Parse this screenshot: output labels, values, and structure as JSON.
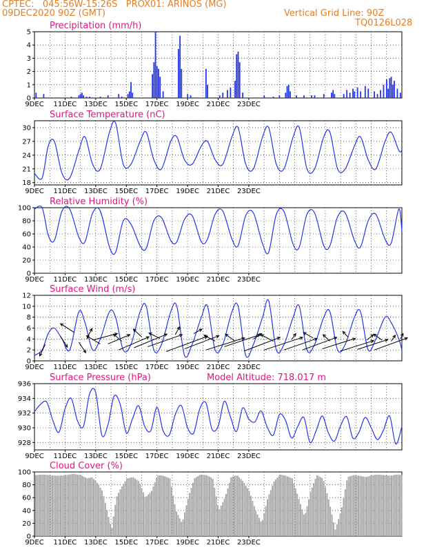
{
  "header": {
    "line1": "CPTEC:   045:56W-15:26S   PROX01: ARINOS (MG)",
    "line2_left": "09DEC2020 90Z (GMT)",
    "line2_right": "Vertical Grid Line: 90Z",
    "line3_right": "TQ0126L028"
  },
  "colors": {
    "header": "#e67e22",
    "title": "#e0157f",
    "series": "#2233ee",
    "cloud": "#aaaaaa",
    "arrow": "#000000"
  },
  "chart_data": [
    {
      "id": "precip",
      "type": "bar",
      "title": "Precipitation (mm/h)",
      "xlabels": [
        "9DEC",
        "11DEC",
        "13DEC",
        "15DEC",
        "17DEC",
        "19DEC",
        "21DEC",
        "23DEC"
      ],
      "yticks": [
        0,
        1,
        2,
        3,
        4,
        5
      ],
      "ylim": [
        0,
        5
      ],
      "events": [
        [
          0.1,
          0.4
        ],
        [
          0.6,
          0.3
        ],
        [
          2.4,
          0.1
        ],
        [
          2.9,
          0.2
        ],
        [
          3.0,
          0.3
        ],
        [
          3.1,
          0.4
        ],
        [
          3.2,
          0.2
        ],
        [
          3.4,
          0.1
        ],
        [
          3.6,
          0.1
        ],
        [
          4.3,
          0.1
        ],
        [
          4.8,
          0.2
        ],
        [
          5.5,
          0.3
        ],
        [
          5.7,
          0.1
        ],
        [
          6.1,
          0.3
        ],
        [
          6.2,
          0.5
        ],
        [
          6.3,
          1.2
        ],
        [
          6.4,
          0.4
        ],
        [
          7.7,
          1.8
        ],
        [
          7.8,
          2.7
        ],
        [
          7.9,
          5.0
        ],
        [
          8.0,
          2.4
        ],
        [
          8.1,
          2.2
        ],
        [
          8.2,
          1.6
        ],
        [
          8.4,
          0.5
        ],
        [
          9.4,
          3.7
        ],
        [
          9.5,
          4.7
        ],
        [
          9.6,
          2.2
        ],
        [
          10.0,
          0.3
        ],
        [
          10.2,
          0.2
        ],
        [
          11.2,
          2.2
        ],
        [
          11.3,
          1.0
        ],
        [
          12.1,
          0.2
        ],
        [
          12.3,
          0.4
        ],
        [
          12.6,
          0.6
        ],
        [
          12.8,
          0.8
        ],
        [
          13.1,
          1.3
        ],
        [
          13.2,
          3.3
        ],
        [
          13.3,
          3.5
        ],
        [
          13.4,
          2.7
        ],
        [
          13.6,
          0.4
        ],
        [
          15.0,
          0.2
        ],
        [
          15.6,
          0.1
        ],
        [
          16.0,
          0.2
        ],
        [
          16.4,
          0.4
        ],
        [
          16.5,
          0.9
        ],
        [
          16.6,
          1.0
        ],
        [
          16.7,
          0.5
        ],
        [
          17.1,
          0.2
        ],
        [
          17.6,
          0.2
        ],
        [
          18.1,
          0.2
        ],
        [
          18.3,
          0.2
        ],
        [
          18.9,
          0.3
        ],
        [
          19.4,
          0.4
        ],
        [
          19.5,
          0.6
        ],
        [
          19.6,
          0.3
        ],
        [
          20.2,
          0.3
        ],
        [
          20.4,
          0.6
        ],
        [
          20.6,
          0.4
        ],
        [
          20.8,
          0.7
        ],
        [
          20.9,
          0.5
        ],
        [
          21.1,
          0.8
        ],
        [
          21.3,
          0.5
        ],
        [
          21.6,
          0.9
        ],
        [
          21.8,
          0.7
        ],
        [
          22.2,
          0.5
        ],
        [
          22.4,
          0.3
        ],
        [
          22.6,
          0.6
        ],
        [
          22.8,
          1.0
        ],
        [
          23.0,
          1.4
        ],
        [
          23.1,
          0.7
        ],
        [
          23.2,
          1.5
        ],
        [
          23.3,
          1.6
        ],
        [
          23.4,
          1.0
        ],
        [
          23.5,
          1.3
        ],
        [
          23.7,
          0.7
        ],
        [
          23.9,
          0.4
        ]
      ]
    },
    {
      "id": "temp",
      "type": "line",
      "title": "Surface Temperature (nC)",
      "xlabels": [
        "9DEC",
        "11DEC",
        "13DEC",
        "15DEC",
        "17DEC",
        "19DEC",
        "21DEC",
        "23DEC"
      ],
      "yticks": [
        18,
        21,
        24,
        27,
        30
      ],
      "ylim": [
        17.5,
        31.5
      ],
      "x": [
        0,
        0.5,
        0.9,
        1.3,
        1.8,
        2.3,
        2.9,
        3.3,
        3.8,
        4.3,
        4.9,
        5.3,
        5.8,
        6.3,
        6.9,
        7.3,
        7.8,
        8.3,
        8.9,
        9.3,
        9.8,
        10.3,
        10.9,
        11.3,
        11.8,
        12.3,
        12.9,
        13.3,
        13.8,
        14.3,
        14.9,
        15.3,
        15.8,
        16.3,
        16.9,
        17.3,
        17.8,
        18.3,
        18.9,
        19.3,
        19.8,
        20.3,
        20.9,
        21.3,
        21.8,
        22.3,
        22.9,
        23.3,
        23.8,
        24.0
      ],
      "y": [
        20,
        19,
        26,
        27,
        20,
        19,
        25,
        28,
        22,
        21,
        29,
        31,
        22,
        22,
        27,
        29,
        23,
        21,
        27,
        28,
        23,
        22,
        26,
        27,
        23,
        22,
        28,
        30,
        22,
        21,
        28,
        30,
        22,
        21,
        28,
        30,
        21,
        21,
        28,
        29,
        21,
        21,
        26,
        28,
        23,
        21,
        27,
        29,
        25,
        25
      ]
    },
    {
      "id": "rh",
      "type": "line",
      "title": "Relative Humidity (%)",
      "xlabels": [
        "9DEC",
        "11DEC",
        "13DEC",
        "15DEC",
        "17DEC",
        "19DEC",
        "21DEC",
        "23DEC"
      ],
      "yticks": [
        0,
        20,
        40,
        60,
        80,
        100
      ],
      "ylim": [
        0,
        100
      ],
      "x": [
        0,
        0.5,
        0.9,
        1.3,
        1.8,
        2.3,
        2.9,
        3.3,
        3.8,
        4.3,
        4.9,
        5.3,
        5.8,
        6.3,
        6.9,
        7.3,
        7.8,
        8.3,
        8.9,
        9.3,
        9.8,
        10.3,
        10.9,
        11.3,
        11.8,
        12.3,
        12.9,
        13.3,
        13.8,
        14.3,
        14.9,
        15.3,
        15.8,
        16.3,
        16.9,
        17.3,
        17.8,
        18.3,
        18.9,
        19.3,
        19.8,
        20.3,
        20.9,
        21.3,
        21.8,
        22.3,
        22.9,
        23.3,
        23.8,
        24.0
      ],
      "y": [
        98,
        100,
        58,
        50,
        95,
        98,
        55,
        48,
        92,
        95,
        40,
        32,
        80,
        75,
        42,
        38,
        80,
        85,
        50,
        48,
        82,
        88,
        48,
        52,
        90,
        95,
        52,
        42,
        88,
        92,
        45,
        32,
        90,
        94,
        44,
        40,
        90,
        92,
        42,
        42,
        86,
        92,
        50,
        40,
        80,
        90,
        52,
        46,
        98,
        65
      ]
    },
    {
      "id": "wind",
      "type": "line",
      "title": "Surface Wind (m/s)",
      "xlabels": [
        "9DEC",
        "11DEC",
        "13DEC",
        "15DEC",
        "17DEC",
        "19DEC",
        "21DEC",
        "23DEC"
      ],
      "yticks": [
        0,
        2,
        4,
        6,
        8,
        10,
        12
      ],
      "ylim": [
        0,
        12
      ],
      "x": [
        0,
        0.5,
        0.9,
        1.3,
        1.8,
        2.3,
        2.9,
        3.3,
        3.8,
        4.3,
        4.9,
        5.3,
        5.8,
        6.3,
        6.9,
        7.3,
        7.8,
        8.3,
        8.9,
        9.3,
        9.8,
        10.3,
        10.9,
        11.3,
        11.8,
        12.3,
        12.9,
        13.3,
        13.8,
        14.3,
        14.9,
        15.3,
        15.8,
        16.3,
        16.9,
        17.3,
        17.8,
        18.3,
        18.9,
        19.3,
        19.8,
        20.3,
        20.9,
        21.3,
        21.8,
        22.3,
        22.9,
        23.3,
        23.8,
        24.0
      ],
      "y": [
        1,
        2,
        5,
        6,
        4,
        2,
        9,
        7,
        2,
        4,
        9,
        8,
        2,
        3,
        9,
        10,
        2,
        3,
        9,
        10,
        1,
        3,
        8,
        10,
        2,
        3,
        9,
        10,
        1,
        3,
        8,
        11,
        2,
        3,
        8,
        10,
        2,
        3,
        8,
        9,
        2,
        3,
        8,
        9,
        2,
        4,
        8,
        7,
        4,
        2
      ],
      "arrows": [
        [
          0.7,
          3.0,
          -0.4,
          -2.1
        ],
        [
          1.7,
          4.5,
          0.5,
          -2.0
        ],
        [
          2.6,
          5.2,
          -1.0,
          1.6
        ],
        [
          2.9,
          3.4,
          0.5,
          -1.9
        ],
        [
          3.4,
          4.0,
          0.4,
          1.9
        ],
        [
          3.8,
          3.8,
          1.8,
          1.2
        ],
        [
          4.3,
          3.1,
          -1.0,
          1.5
        ],
        [
          4.8,
          3.1,
          1.6,
          1.7
        ],
        [
          5.5,
          2.0,
          2.2,
          2.4
        ],
        [
          5.7,
          3.6,
          -0.6,
          1.3
        ],
        [
          6.5,
          2.4,
          2.4,
          2.5
        ],
        [
          7.0,
          4.4,
          -0.6,
          1.4
        ],
        [
          7.4,
          2.6,
          2.5,
          2.2
        ],
        [
          8.2,
          4.1,
          -0.8,
          1.0
        ],
        [
          8.6,
          1.7,
          3.0,
          2.8
        ],
        [
          9.2,
          4.8,
          0.3,
          1.4
        ],
        [
          9.8,
          2.2,
          2.5,
          2.4
        ],
        [
          10.4,
          5.0,
          0.6,
          0.8
        ],
        [
          11.2,
          2.0,
          2.8,
          2.2
        ],
        [
          11.8,
          3.6,
          -0.8,
          1.1
        ],
        [
          12.4,
          2.6,
          2.6,
          2.2
        ],
        [
          13.1,
          3.6,
          -0.7,
          1.3
        ],
        [
          13.7,
          1.8,
          2.6,
          2.5
        ],
        [
          14.3,
          4.0,
          0.6,
          1.0
        ],
        [
          15.0,
          2.0,
          2.8,
          2.3
        ],
        [
          15.6,
          3.6,
          -0.9,
          1.2
        ],
        [
          16.3,
          2.0,
          2.4,
          2.1
        ],
        [
          16.8,
          3.9,
          0.3,
          1.1
        ],
        [
          17.5,
          2.0,
          2.5,
          2.3
        ],
        [
          18.2,
          4.2,
          -0.7,
          1.0
        ],
        [
          18.8,
          2.2,
          2.4,
          1.9
        ],
        [
          19.3,
          3.6,
          -0.5,
          1.2
        ],
        [
          20.0,
          1.8,
          2.4,
          1.9
        ],
        [
          20.5,
          4.3,
          -0.4,
          1.1
        ],
        [
          21.1,
          2.1,
          2.2,
          1.8
        ],
        [
          21.7,
          3.8,
          0.5,
          1.0
        ],
        [
          22.2,
          2.0,
          2.4,
          2.2
        ],
        [
          22.7,
          3.8,
          -0.6,
          1.1
        ],
        [
          23.3,
          3.6,
          0.3,
          1.1
        ],
        [
          23.9,
          4.0,
          0.2,
          1.0
        ]
      ]
    },
    {
      "id": "pres",
      "type": "line",
      "title": "Surface Pressure (hPa)",
      "subtitle": "Model Altitude: 718.017 m",
      "xlabels": [
        "9DEC",
        "11DEC",
        "13DEC",
        "15DEC",
        "17DEC",
        "19DEC",
        "21DEC",
        "23DEC"
      ],
      "yticks": [
        928,
        930,
        932,
        934,
        936
      ],
      "ylim": [
        927,
        936
      ],
      "x": [
        0,
        0.4,
        0.8,
        1.2,
        1.6,
        2.0,
        2.4,
        2.8,
        3.2,
        3.6,
        4.0,
        4.4,
        4.8,
        5.2,
        5.6,
        6.0,
        6.4,
        6.8,
        7.2,
        7.6,
        8.0,
        8.4,
        8.8,
        9.2,
        9.6,
        10.0,
        10.4,
        10.8,
        11.2,
        11.6,
        12.0,
        12.4,
        12.8,
        13.2,
        13.6,
        14.0,
        14.4,
        14.8,
        15.2,
        15.6,
        16.0,
        16.4,
        16.8,
        17.2,
        17.6,
        18.0,
        18.4,
        18.8,
        19.2,
        19.6,
        20.0,
        20.4,
        20.8,
        21.2,
        21.6,
        22.0,
        22.4,
        22.8,
        23.2,
        23.6,
        24.0
      ],
      "y": [
        932.2,
        933.2,
        933.5,
        931.0,
        929.4,
        932.6,
        934.0,
        931.0,
        930.2,
        934.6,
        934.8,
        929.0,
        930.4,
        934.3,
        933.2,
        929.3,
        931.2,
        933.0,
        930.2,
        929.6,
        932.8,
        929.6,
        929.0,
        931.8,
        933.0,
        930.0,
        929.3,
        932.6,
        933.4,
        929.8,
        930.2,
        933.6,
        931.5,
        929.5,
        932.7,
        931.2,
        930.8,
        932.3,
        930.1,
        929.0,
        931.8,
        931.0,
        928.6,
        930.2,
        931.4,
        928.0,
        929.6,
        931.6,
        929.3,
        928.2,
        930.3,
        931.5,
        928.6,
        929.4,
        931.4,
        930.0,
        928.4,
        929.7,
        931.6,
        927.8,
        930.2
      ]
    },
    {
      "id": "cloud",
      "type": "bar",
      "title": "Cloud Cover (%)",
      "xlabels": [
        "9DEC",
        "11DEC",
        "13DEC",
        "15DEC",
        "17DEC",
        "19DEC",
        "21DEC",
        "23DEC"
      ],
      "yticks": [
        0,
        20,
        40,
        60,
        80,
        100
      ],
      "ylim": [
        0,
        100
      ],
      "x": [
        0,
        0.5,
        1.0,
        1.5,
        2.0,
        2.5,
        3.0,
        3.4,
        3.7,
        4.0,
        4.4,
        4.8,
        5.0,
        5.3,
        5.6,
        6.0,
        6.4,
        6.8,
        7.2,
        7.6,
        8.0,
        8.4,
        8.8,
        9.2,
        9.6,
        10.0,
        10.4,
        10.8,
        11.2,
        11.6,
        12.0,
        12.4,
        12.8,
        13.2,
        13.6,
        14.0,
        14.4,
        14.8,
        15.2,
        15.6,
        16.0,
        16.4,
        16.8,
        17.2,
        17.6,
        18.0,
        18.4,
        18.8,
        19.2,
        19.6,
        20.0,
        20.4,
        20.8,
        21.2,
        21.6,
        22.0,
        22.4,
        22.8,
        23.2,
        23.6,
        24.0
      ],
      "y": [
        95,
        96,
        95,
        94,
        95,
        97,
        95,
        90,
        92,
        85,
        70,
        30,
        10,
        60,
        75,
        90,
        92,
        85,
        60,
        70,
        95,
        94,
        90,
        40,
        20,
        60,
        90,
        96,
        95,
        90,
        40,
        60,
        92,
        95,
        85,
        70,
        40,
        20,
        60,
        85,
        96,
        94,
        90,
        60,
        30,
        70,
        95,
        90,
        55,
        10,
        40,
        92,
        95,
        94,
        92,
        95,
        96,
        95,
        94,
        96,
        95
      ]
    }
  ]
}
